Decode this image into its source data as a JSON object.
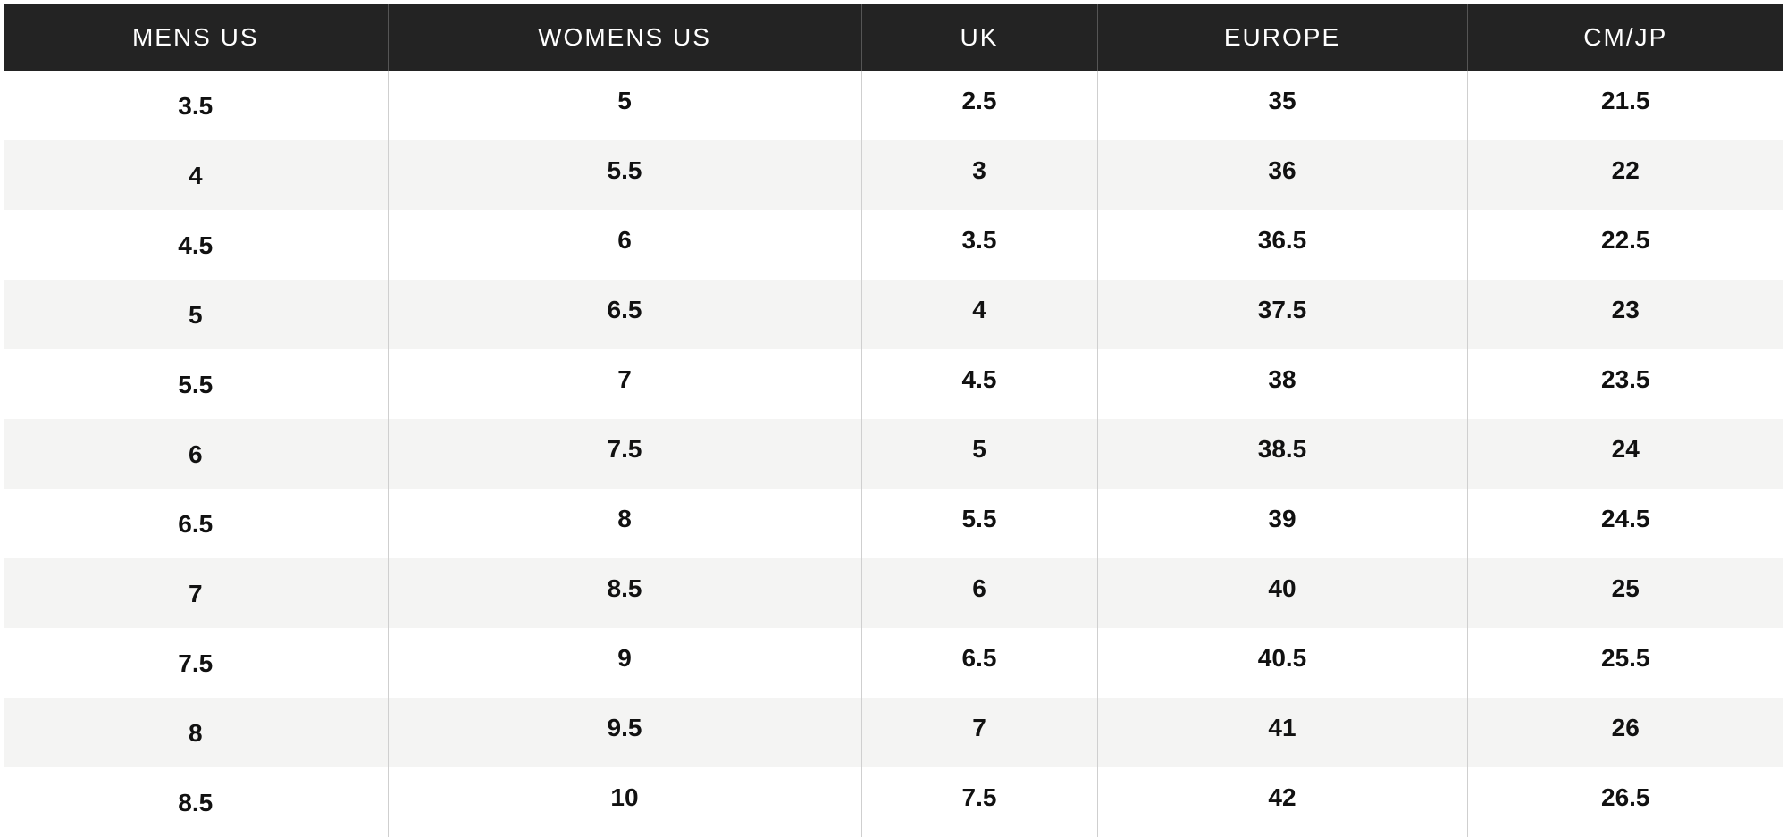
{
  "size_chart": {
    "headers": [
      "MENS US",
      "WOMENS US",
      "UK",
      "EUROPE",
      "CM/JP"
    ],
    "rows": [
      [
        "3.5",
        "5",
        "2.5",
        "35",
        "21.5"
      ],
      [
        "4",
        "5.5",
        "3",
        "36",
        "22"
      ],
      [
        "4.5",
        "6",
        "3.5",
        "36.5",
        "22.5"
      ],
      [
        "5",
        "6.5",
        "4",
        "37.5",
        "23"
      ],
      [
        "5.5",
        "7",
        "4.5",
        "38",
        "23.5"
      ],
      [
        "6",
        "7.5",
        "5",
        "38.5",
        "24"
      ],
      [
        "6.5",
        "8",
        "5.5",
        "39",
        "24.5"
      ],
      [
        "7",
        "8.5",
        "6",
        "40",
        "25"
      ],
      [
        "7.5",
        "9",
        "6.5",
        "40.5",
        "25.5"
      ],
      [
        "8",
        "9.5",
        "7",
        "41",
        "26"
      ],
      [
        "8.5",
        "10",
        "7.5",
        "42",
        "26.5"
      ]
    ]
  },
  "colors": {
    "header_background": "#232323",
    "header_text": "#ffffff",
    "stripe_background": "#f4f4f3",
    "cell_text": "#111111"
  }
}
